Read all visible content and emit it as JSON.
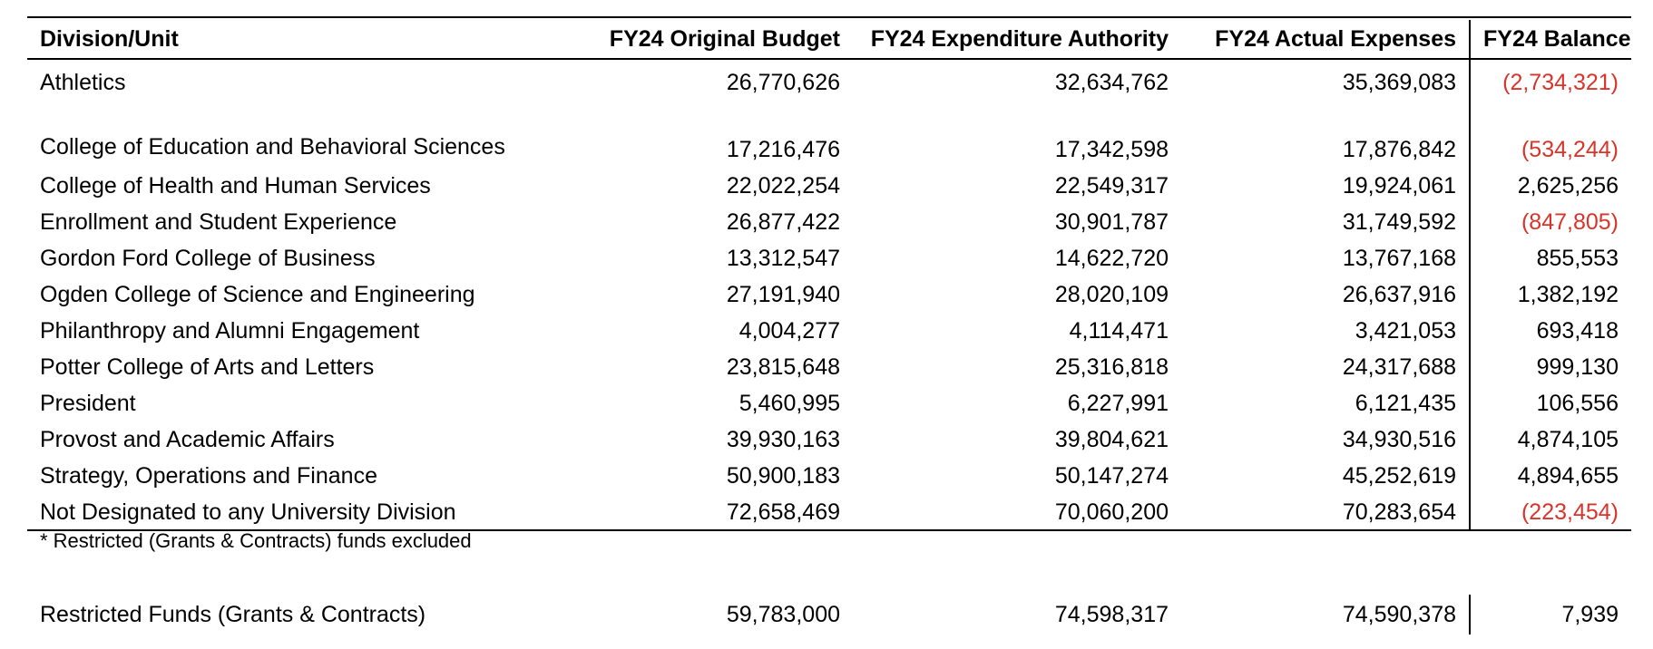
{
  "table": {
    "headers": {
      "division": "Division/Unit",
      "original_budget": "FY24 Original Budget",
      "expenditure_authority": "FY24 Expenditure Authority",
      "actual_expenses": "FY24 Actual Expenses",
      "balance": "FY24 Balance"
    },
    "rows": [
      {
        "division": "Athletics",
        "original_budget": "26,770,626",
        "expenditure_authority": "32,634,762",
        "actual_expenses": "35,369,083",
        "balance": "(2,734,321)",
        "negative": true
      },
      {
        "division": "College of Education and Behavioral Sciences",
        "original_budget": "17,216,476",
        "expenditure_authority": "17,342,598",
        "actual_expenses": "17,876,842",
        "balance": "(534,244)",
        "negative": true
      },
      {
        "division": "College of Health and Human Services",
        "original_budget": "22,022,254",
        "expenditure_authority": "22,549,317",
        "actual_expenses": "19,924,061",
        "balance": "2,625,256",
        "negative": false
      },
      {
        "division": "Enrollment and Student Experience",
        "original_budget": "26,877,422",
        "expenditure_authority": "30,901,787",
        "actual_expenses": "31,749,592",
        "balance": "(847,805)",
        "negative": true
      },
      {
        "division": "Gordon Ford College of Business",
        "original_budget": "13,312,547",
        "expenditure_authority": "14,622,720",
        "actual_expenses": "13,767,168",
        "balance": "855,553",
        "negative": false
      },
      {
        "division": "Ogden College of Science and Engineering",
        "original_budget": "27,191,940",
        "expenditure_authority": "28,020,109",
        "actual_expenses": "26,637,916",
        "balance": "1,382,192",
        "negative": false
      },
      {
        "division": "Philanthropy and Alumni Engagement",
        "original_budget": "4,004,277",
        "expenditure_authority": "4,114,471",
        "actual_expenses": "3,421,053",
        "balance": "693,418",
        "negative": false
      },
      {
        "division": "Potter College of Arts and Letters",
        "original_budget": "23,815,648",
        "expenditure_authority": "25,316,818",
        "actual_expenses": "24,317,688",
        "balance": "999,130",
        "negative": false
      },
      {
        "division": "President",
        "original_budget": "5,460,995",
        "expenditure_authority": "6,227,991",
        "actual_expenses": "6,121,435",
        "balance": "106,556",
        "negative": false
      },
      {
        "division": "Provost and Academic Affairs",
        "original_budget": "39,930,163",
        "expenditure_authority": "39,804,621",
        "actual_expenses": "34,930,516",
        "balance": "4,874,105",
        "negative": false
      },
      {
        "division": "Strategy, Operations and Finance",
        "original_budget": "50,900,183",
        "expenditure_authority": "50,147,274",
        "actual_expenses": "45,252,619",
        "balance": "4,894,655",
        "negative": false
      },
      {
        "division": "Not Designated to any University Division",
        "original_budget": "72,658,469",
        "expenditure_authority": "70,060,200",
        "actual_expenses": "70,283,654",
        "balance": "(223,454)",
        "negative": true
      }
    ]
  },
  "footnote": "* Restricted (Grants & Contracts) funds excluded",
  "restricted": {
    "division": "Restricted Funds (Grants & Contracts)",
    "original_budget": "59,783,000",
    "expenditure_authority": "74,598,317",
    "actual_expenses": "74,590,378",
    "balance": "7,939"
  },
  "colors": {
    "negative": "#d9342b",
    "text": "#000000"
  }
}
